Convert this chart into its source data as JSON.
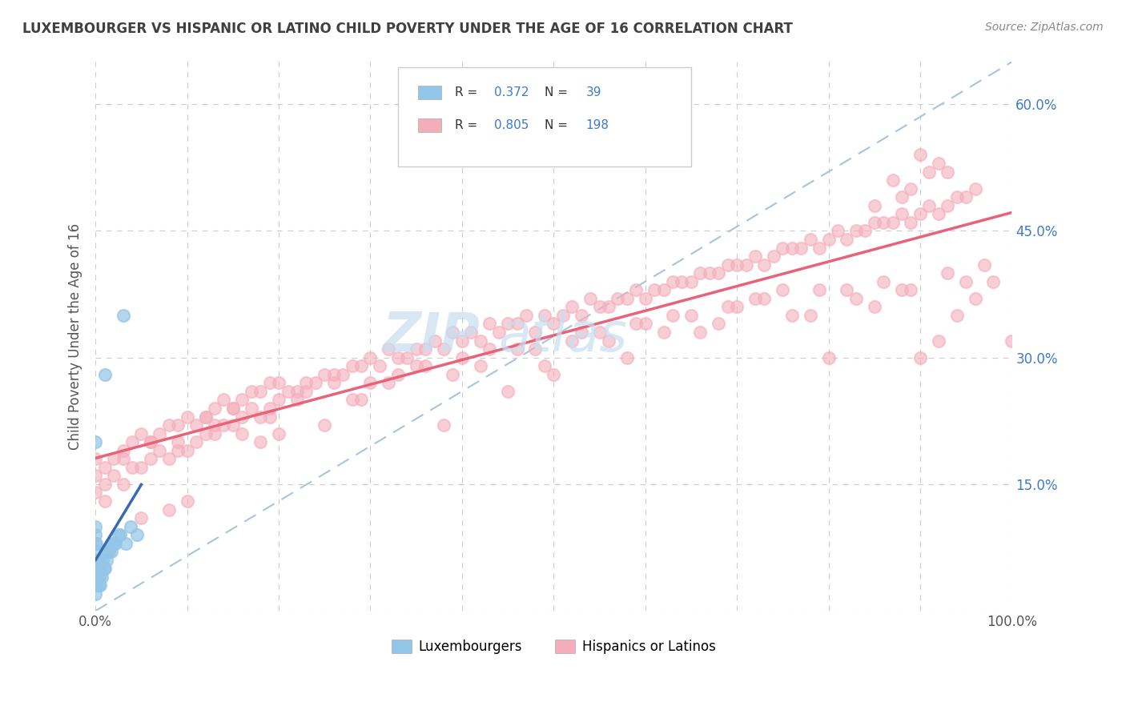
{
  "title": "LUXEMBOURGER VS HISPANIC OR LATINO CHILD POVERTY UNDER THE AGE OF 16 CORRELATION CHART",
  "source": "Source: ZipAtlas.com",
  "ylabel": "Child Poverty Under the Age of 16",
  "xlim": [
    0,
    1.0
  ],
  "ylim": [
    0,
    0.65
  ],
  "xtick_pos": [
    0.0,
    0.1,
    0.2,
    0.3,
    0.4,
    0.5,
    0.6,
    0.7,
    0.8,
    0.9,
    1.0
  ],
  "xticklabels": [
    "0.0%",
    "",
    "",
    "",
    "",
    "",
    "",
    "",
    "",
    "",
    "100.0%"
  ],
  "ytick_pos": [
    0.0,
    0.15,
    0.3,
    0.45,
    0.6
  ],
  "yticklabels_right": [
    "",
    "15.0%",
    "30.0%",
    "45.0%",
    "60.0%"
  ],
  "legend_label1": "Luxembourgers",
  "legend_label2": "Hispanics or Latinos",
  "blue_scatter_color": "#92C5E8",
  "pink_scatter_color": "#F4AEBB",
  "blue_line_color": "#3A6AB0",
  "pink_line_color": "#E8637A",
  "diagonal_color": "#A8C4DC",
  "title_color": "#404040",
  "r_value_color": "#3D7AC8",
  "source_color": "#888888",
  "grid_color": "#CCCCCC",
  "watermark_color": "#C8DEF0",
  "lux_x": [
    0.0,
    0.0,
    0.0,
    0.0,
    0.0,
    0.0,
    0.0,
    0.0,
    0.0,
    0.0,
    0.001,
    0.001,
    0.001,
    0.002,
    0.002,
    0.003,
    0.003,
    0.004,
    0.005,
    0.005,
    0.006,
    0.007,
    0.008,
    0.009,
    0.01,
    0.01,
    0.012,
    0.013,
    0.015,
    0.017,
    0.018,
    0.02,
    0.022,
    0.025,
    0.027,
    0.03,
    0.033,
    0.038,
    0.045
  ],
  "lux_y": [
    0.02,
    0.03,
    0.04,
    0.05,
    0.06,
    0.07,
    0.08,
    0.09,
    0.1,
    0.2,
    0.03,
    0.05,
    0.08,
    0.04,
    0.06,
    0.03,
    0.05,
    0.04,
    0.03,
    0.06,
    0.05,
    0.04,
    0.06,
    0.05,
    0.05,
    0.28,
    0.06,
    0.07,
    0.07,
    0.07,
    0.08,
    0.08,
    0.08,
    0.09,
    0.09,
    0.35,
    0.08,
    0.1,
    0.09
  ],
  "hisp_x": [
    0.0,
    0.0,
    0.0,
    0.01,
    0.01,
    0.01,
    0.02,
    0.02,
    0.03,
    0.03,
    0.04,
    0.04,
    0.05,
    0.05,
    0.06,
    0.06,
    0.07,
    0.07,
    0.08,
    0.08,
    0.09,
    0.09,
    0.1,
    0.1,
    0.11,
    0.11,
    0.12,
    0.12,
    0.13,
    0.13,
    0.14,
    0.14,
    0.15,
    0.15,
    0.16,
    0.16,
    0.17,
    0.17,
    0.18,
    0.18,
    0.19,
    0.19,
    0.2,
    0.2,
    0.21,
    0.22,
    0.23,
    0.24,
    0.25,
    0.26,
    0.27,
    0.28,
    0.29,
    0.3,
    0.31,
    0.32,
    0.33,
    0.34,
    0.35,
    0.36,
    0.37,
    0.38,
    0.39,
    0.4,
    0.41,
    0.42,
    0.43,
    0.44,
    0.45,
    0.46,
    0.47,
    0.48,
    0.49,
    0.5,
    0.51,
    0.52,
    0.53,
    0.54,
    0.55,
    0.56,
    0.57,
    0.58,
    0.59,
    0.6,
    0.61,
    0.62,
    0.63,
    0.64,
    0.65,
    0.66,
    0.67,
    0.68,
    0.69,
    0.7,
    0.71,
    0.72,
    0.73,
    0.74,
    0.75,
    0.76,
    0.77,
    0.78,
    0.79,
    0.8,
    0.81,
    0.82,
    0.83,
    0.84,
    0.85,
    0.86,
    0.87,
    0.88,
    0.89,
    0.9,
    0.91,
    0.92,
    0.93,
    0.94,
    0.95,
    0.96,
    0.05,
    0.08,
    0.1,
    0.12,
    0.15,
    0.18,
    0.2,
    0.22,
    0.25,
    0.28,
    0.3,
    0.33,
    0.35,
    0.38,
    0.4,
    0.42,
    0.45,
    0.48,
    0.5,
    0.52,
    0.55,
    0.58,
    0.6,
    0.62,
    0.65,
    0.68,
    0.7,
    0.72,
    0.75,
    0.78,
    0.8,
    0.82,
    0.85,
    0.88,
    0.9,
    0.92,
    0.94,
    0.96,
    0.98,
    1.0,
    0.03,
    0.06,
    0.09,
    0.13,
    0.16,
    0.19,
    0.23,
    0.26,
    0.29,
    0.32,
    0.36,
    0.39,
    0.43,
    0.46,
    0.49,
    0.53,
    0.56,
    0.59,
    0.63,
    0.66,
    0.69,
    0.73,
    0.76,
    0.79,
    0.83,
    0.86,
    0.89,
    0.93,
    0.95,
    0.97,
    0.87,
    0.9,
    0.88,
    0.93,
    0.85,
    0.92,
    0.89,
    0.91
  ],
  "hisp_y": [
    0.14,
    0.16,
    0.18,
    0.13,
    0.15,
    0.17,
    0.16,
    0.18,
    0.15,
    0.19,
    0.17,
    0.2,
    0.17,
    0.21,
    0.18,
    0.2,
    0.19,
    0.21,
    0.18,
    0.22,
    0.2,
    0.22,
    0.19,
    0.23,
    0.2,
    0.22,
    0.21,
    0.23,
    0.21,
    0.24,
    0.22,
    0.25,
    0.22,
    0.24,
    0.23,
    0.25,
    0.24,
    0.26,
    0.23,
    0.26,
    0.24,
    0.27,
    0.25,
    0.27,
    0.26,
    0.25,
    0.27,
    0.27,
    0.28,
    0.27,
    0.28,
    0.29,
    0.29,
    0.3,
    0.29,
    0.31,
    0.3,
    0.3,
    0.31,
    0.31,
    0.32,
    0.31,
    0.33,
    0.32,
    0.33,
    0.32,
    0.34,
    0.33,
    0.34,
    0.34,
    0.35,
    0.33,
    0.35,
    0.34,
    0.35,
    0.36,
    0.35,
    0.37,
    0.36,
    0.36,
    0.37,
    0.37,
    0.38,
    0.37,
    0.38,
    0.38,
    0.39,
    0.39,
    0.39,
    0.4,
    0.4,
    0.4,
    0.41,
    0.41,
    0.41,
    0.42,
    0.41,
    0.42,
    0.43,
    0.43,
    0.43,
    0.44,
    0.43,
    0.44,
    0.45,
    0.44,
    0.45,
    0.45,
    0.46,
    0.46,
    0.46,
    0.47,
    0.46,
    0.47,
    0.48,
    0.47,
    0.48,
    0.49,
    0.49,
    0.5,
    0.11,
    0.12,
    0.13,
    0.23,
    0.24,
    0.2,
    0.21,
    0.26,
    0.22,
    0.25,
    0.27,
    0.28,
    0.29,
    0.22,
    0.3,
    0.29,
    0.26,
    0.31,
    0.28,
    0.32,
    0.33,
    0.3,
    0.34,
    0.33,
    0.35,
    0.34,
    0.36,
    0.37,
    0.38,
    0.35,
    0.3,
    0.38,
    0.36,
    0.38,
    0.3,
    0.32,
    0.35,
    0.37,
    0.39,
    0.32,
    0.18,
    0.2,
    0.19,
    0.22,
    0.21,
    0.23,
    0.26,
    0.28,
    0.25,
    0.27,
    0.29,
    0.28,
    0.31,
    0.31,
    0.29,
    0.33,
    0.32,
    0.34,
    0.35,
    0.33,
    0.36,
    0.37,
    0.35,
    0.38,
    0.37,
    0.39,
    0.38,
    0.4,
    0.39,
    0.41,
    0.51,
    0.54,
    0.49,
    0.52,
    0.48,
    0.53,
    0.5,
    0.52
  ]
}
